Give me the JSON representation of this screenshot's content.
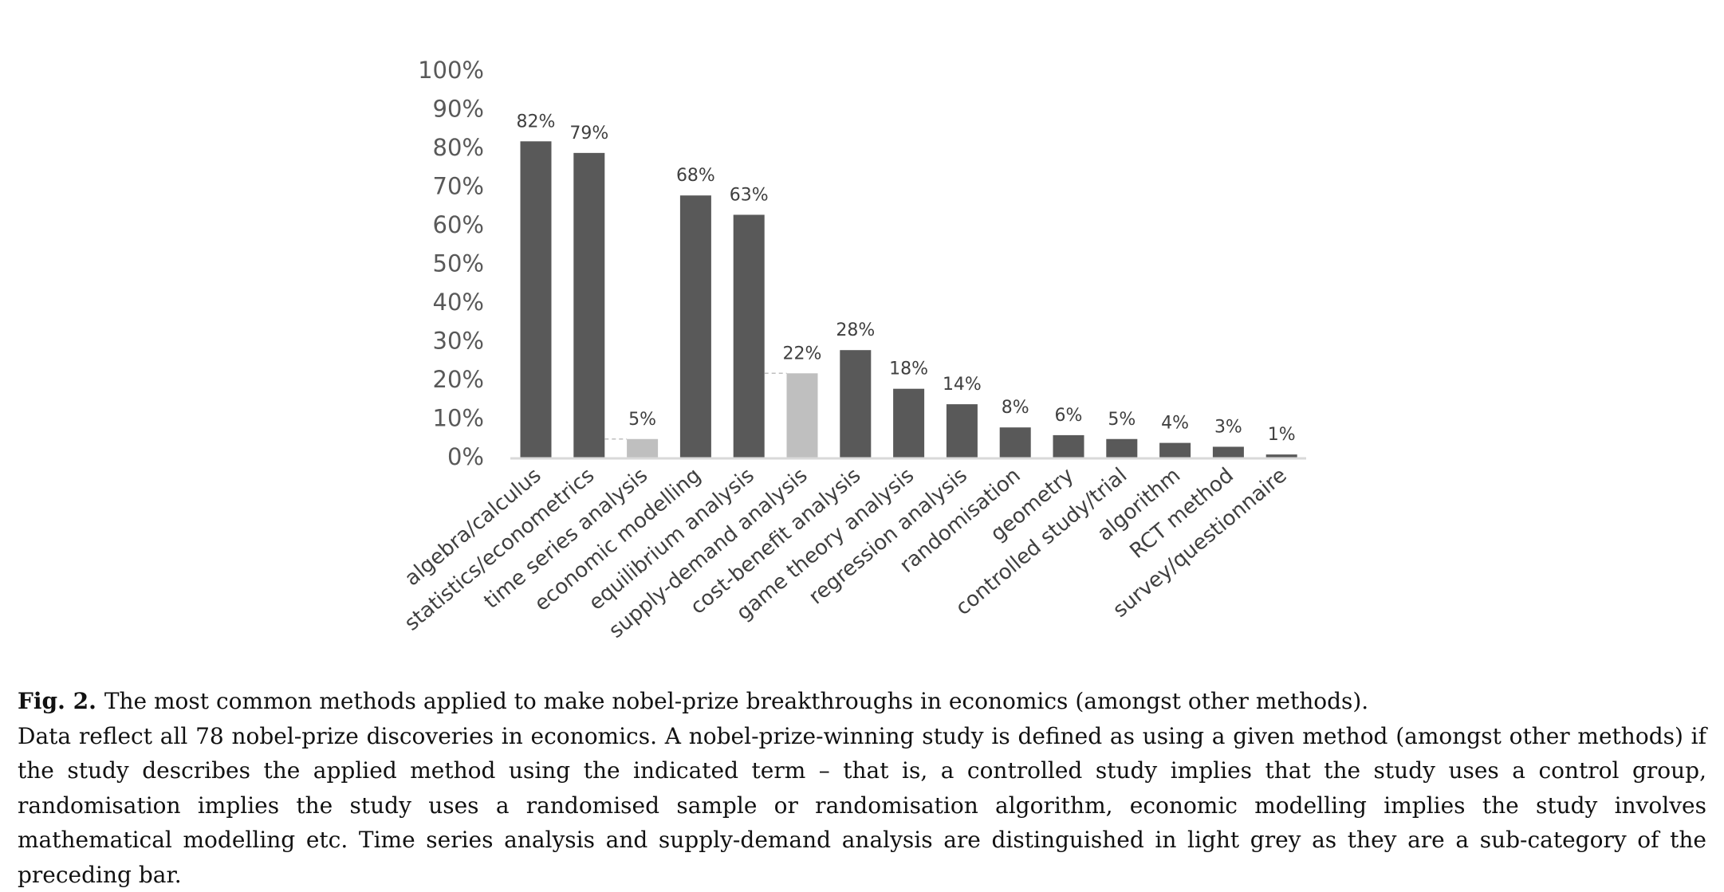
{
  "chart_data": {
    "type": "bar",
    "categories": [
      "algebra/calculus",
      "statistics/econometrics",
      "time series analysis",
      "economic modelling",
      "equilibrium analysis",
      "supply-demand analysis",
      "cost-benefit analysis",
      "game theory analysis",
      "regression analysis",
      "randomisation",
      "geometry",
      "controlled study/trial",
      "algorithm",
      "RCT method",
      "survey/questionnaire"
    ],
    "values": [
      82,
      79,
      5,
      68,
      63,
      22,
      28,
      18,
      14,
      8,
      6,
      5,
      4,
      3,
      1
    ],
    "value_labels": [
      "82%",
      "79%",
      "5%",
      "68%",
      "63%",
      "22%",
      "28%",
      "18%",
      "14%",
      "8%",
      "6%",
      "5%",
      "4%",
      "3%",
      "1%"
    ],
    "colors": [
      "#595959",
      "#595959",
      "#bfbfbf",
      "#595959",
      "#595959",
      "#bfbfbf",
      "#595959",
      "#595959",
      "#595959",
      "#595959",
      "#595959",
      "#595959",
      "#595959",
      "#595959",
      "#595959"
    ],
    "ylim": [
      0,
      100
    ],
    "yticks": [
      {
        "value": 0,
        "label": "0%"
      },
      {
        "value": 10,
        "label": "10%"
      },
      {
        "value": 20,
        "label": "20%"
      },
      {
        "value": 30,
        "label": "30%"
      },
      {
        "value": 40,
        "label": "40%"
      },
      {
        "value": 50,
        "label": "50%"
      },
      {
        "value": 60,
        "label": "60%"
      },
      {
        "value": 70,
        "label": "70%"
      },
      {
        "value": 80,
        "label": "80%"
      },
      {
        "value": 90,
        "label": "90%"
      },
      {
        "value": 100,
        "label": "100%"
      }
    ],
    "grid": false
  },
  "caption": {
    "label": "Fig. 2.",
    "title": "The most common methods applied to make nobel-prize breakthroughs in economics (amongst other methods).",
    "text": "Data reflect all 78 nobel-prize discoveries in economics. A nobel-prize-winning study is defined as using a given method (amongst other methods) if the study describes the applied method using the indicated term – that is, a controlled study implies that the study uses a control group, randomisation implies the study uses a randomised sample or randomisation algorithm, economic modelling implies the study involves mathematical modelling etc. Time series analysis and supply-demand analysis are distinguished in light grey as they are a sub-category of the preceding bar."
  }
}
